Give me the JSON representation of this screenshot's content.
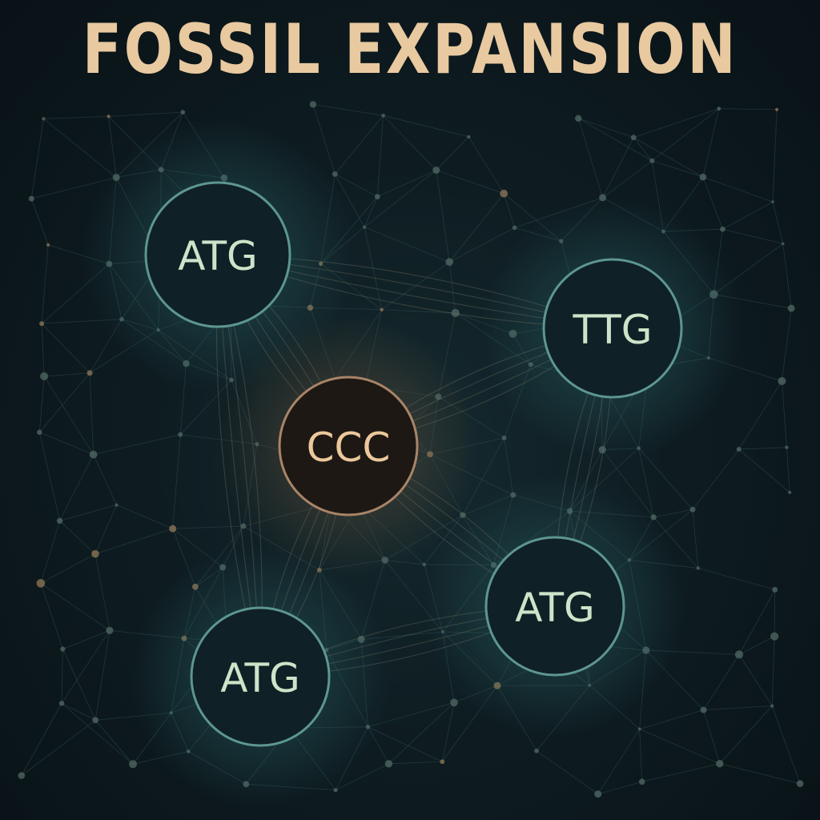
{
  "title": "FOSSIL EXPANSION",
  "colors": {
    "background": "#0b1418",
    "title": "#e8c9a0",
    "teal_ring": "#5e9690",
    "teal_label": "#cfe3c9",
    "amber_ring": "#a98467",
    "amber_label": "#ecc89c",
    "mesh_line": "#2e4a4d",
    "mesh_dot": "#4d6560",
    "mesh_dot_warm": "#8a7355"
  },
  "nodes": [
    {
      "id": "atg-top-left",
      "label": "ATG",
      "tone": "teal"
    },
    {
      "id": "ttg-right",
      "label": "TTG",
      "tone": "teal"
    },
    {
      "id": "ccc-center",
      "label": "CCC",
      "tone": "amber"
    },
    {
      "id": "atg-bottom-right",
      "label": "ATG",
      "tone": "teal"
    },
    {
      "id": "atg-bottom-left",
      "label": "ATG",
      "tone": "teal"
    }
  ],
  "links": [
    [
      "atg-top-left",
      "ccc-center"
    ],
    [
      "atg-top-left",
      "ttg-right"
    ],
    [
      "atg-top-left",
      "atg-bottom-left"
    ],
    [
      "ccc-center",
      "ttg-right"
    ],
    [
      "ccc-center",
      "atg-bottom-right"
    ],
    [
      "ccc-center",
      "atg-bottom-left"
    ],
    [
      "ttg-right",
      "atg-bottom-right"
    ],
    [
      "atg-bottom-left",
      "atg-bottom-right"
    ]
  ]
}
